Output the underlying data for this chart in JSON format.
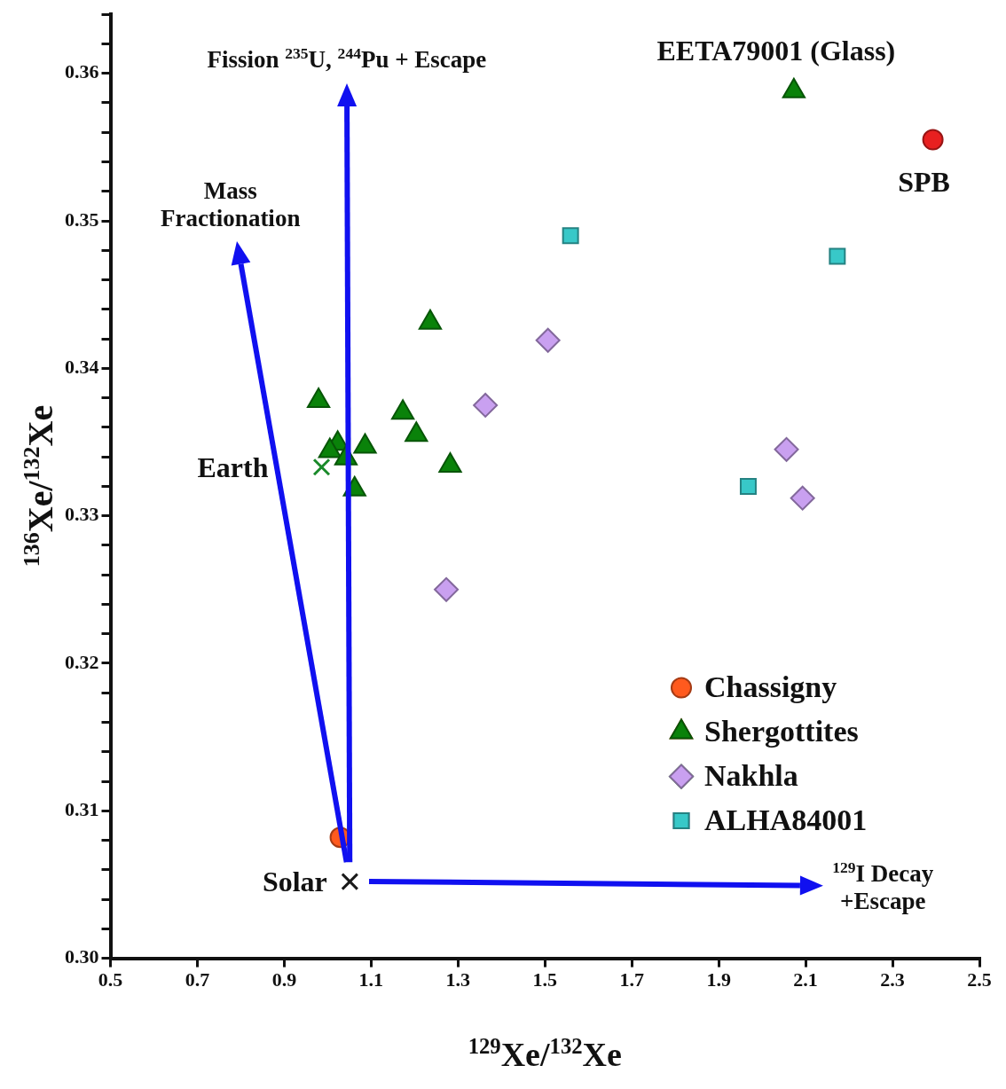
{
  "chart_data": {
    "type": "scatter",
    "xlabel": "$^{129}$Xe/$^{132}$Xe",
    "ylabel": "$^{136}$Xe/$^{132}$Xe",
    "xlim": [
      0.5,
      2.5
    ],
    "xticks": [
      0.5,
      0.7,
      0.9,
      1.1,
      1.3,
      1.5,
      1.7,
      1.9,
      2.1,
      2.3,
      2.5
    ],
    "ylim": [
      0.3,
      0.364
    ],
    "yticks": [
      {
        "value": 0.3,
        "label": "0.30"
      },
      {
        "value": 0.302,
        "label": null
      },
      {
        "value": 0.304,
        "label": null
      },
      {
        "value": 0.306,
        "label": null
      },
      {
        "value": 0.308,
        "label": null
      },
      0.31,
      {
        "value": 0.312,
        "label": null
      },
      {
        "value": 0.314,
        "label": null
      },
      {
        "value": 0.316,
        "label": null
      },
      {
        "value": 0.318,
        "label": null
      },
      0.32,
      {
        "value": 0.322,
        "label": null
      },
      {
        "value": 0.324,
        "label": null
      },
      {
        "value": 0.326,
        "label": null
      },
      {
        "value": 0.328,
        "label": null
      },
      0.33,
      {
        "value": 0.332,
        "label": null
      },
      {
        "value": 0.334,
        "label": null
      },
      {
        "value": 0.336,
        "label": null
      },
      {
        "value": 0.338,
        "label": null
      },
      0.34,
      {
        "value": 0.342,
        "label": null
      },
      {
        "value": 0.344,
        "label": null
      },
      {
        "value": 0.346,
        "label": null
      },
      {
        "value": 0.348,
        "label": null
      },
      0.35,
      {
        "value": 0.352,
        "label": null
      },
      {
        "value": 0.354,
        "label": null
      },
      {
        "value": 0.356,
        "label": null
      },
      {
        "value": 0.358,
        "label": null
      },
      0.36,
      {
        "value": 0.362,
        "label": null
      },
      {
        "value": 0.364,
        "label": null
      }
    ],
    "grid": false,
    "legend": "bottom right",
    "series": [
      {
        "name": "Chassigny",
        "color": "#ff5a1e",
        "marker": "circle",
        "x": [
          1.029
        ],
        "values": [
          0.3082
        ]
      },
      {
        "name": "Shergottites",
        "color": "#0a820a",
        "marker": "triangle",
        "x": [
          0.979,
          1.023,
          1.086,
          1.005,
          1.042,
          1.062,
          1.173,
          1.204,
          1.282,
          1.236,
          2.073
        ],
        "values": [
          0.3378,
          0.3349,
          0.3347,
          0.3344,
          0.3339,
          0.3318,
          0.337,
          0.3355,
          0.3334,
          0.3431,
          0.3588
        ]
      },
      {
        "name": "Nakhla",
        "color": "#c9a0f0",
        "marker": "diamond",
        "x": [
          1.507,
          1.363,
          1.273,
          2.056,
          2.093
        ],
        "values": [
          0.3419,
          0.3375,
          0.325,
          0.3345,
          0.3312
        ]
      },
      {
        "name": "ALHA84001",
        "color": "#38c8c8",
        "marker": "square",
        "x": [
          1.559,
          2.173,
          1.968
        ],
        "values": [
          0.349,
          0.3476,
          0.332
        ]
      },
      {
        "color": "#1a8a2a",
        "marker": "cross",
        "x": [
          0.986
        ],
        "values": [
          0.3333
        ]
      },
      {
        "color": "#1a1a1a",
        "marker": "cross",
        "x": [
          1.051
        ],
        "values": [
          0.3052
        ]
      },
      {
        "color": "#e82020",
        "marker": "circle",
        "x": [
          2.393
        ],
        "values": [
          0.3555
        ]
      }
    ],
    "annotations": [
      "Fission $^{235}$U, $^{244}$Pu + Escape",
      "Mass\nFractionation",
      "$^{129}$I Decay\n+Escape",
      {
        "text": "EETA79001 (Glass)",
        "x": 2.073,
        "y": 0.3588
      },
      {
        "text": "SPB",
        "x": 2.393,
        "y": 0.3555
      },
      {
        "text": "Earth",
        "x": 0.986,
        "y": 0.3333
      },
      {
        "text": "Solar",
        "x": 1.051,
        "y": 0.3052
      }
    ]
  }
}
